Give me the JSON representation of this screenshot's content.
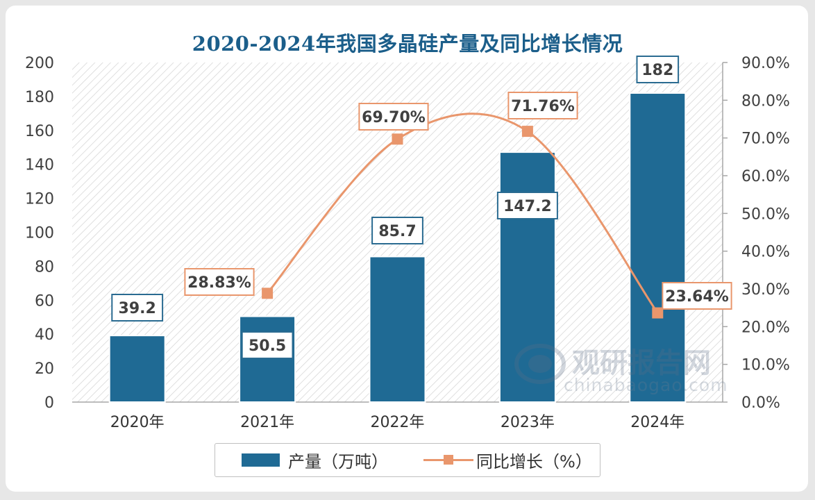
{
  "chart_data": {
    "type": "bar",
    "title": "2020-2024年我国多晶硅产量及同比增长情况",
    "categories": [
      "2020年",
      "2021年",
      "2022年",
      "2023年",
      "2024年"
    ],
    "series": [
      {
        "name": "产量（万吨）",
        "type": "bar",
        "axis": "left",
        "values": [
          39.2,
          50.5,
          85.7,
          147.2,
          182
        ],
        "labels": [
          "39.2",
          "50.5",
          "85.7",
          "147.2",
          "182"
        ],
        "color": "#1f6a94"
      },
      {
        "name": "同比增长（%）",
        "type": "line",
        "axis": "right",
        "values": [
          null,
          28.83,
          69.7,
          71.76,
          23.64
        ],
        "labels": [
          "",
          "28.83%",
          "69.70%",
          "71.76%",
          "23.64%"
        ],
        "color": "#e9966c"
      }
    ],
    "ylim": [
      0,
      200
    ],
    "y_ticks": [
      "0",
      "20",
      "40",
      "60",
      "80",
      "100",
      "120",
      "140",
      "160",
      "180",
      "200"
    ],
    "y2lim": [
      0,
      90
    ],
    "y2_ticks": [
      "0.0%",
      "10.0%",
      "20.0%",
      "30.0%",
      "40.0%",
      "50.0%",
      "60.0%",
      "70.0%",
      "80.0%",
      "90.0%"
    ],
    "grid": false,
    "legend_position": "bottom"
  },
  "legend": {
    "bar_label": "产量（万吨）",
    "line_label": "同比增长（%）"
  },
  "watermark": {
    "text": "观研报告网",
    "url": "chinabaogao.com"
  }
}
